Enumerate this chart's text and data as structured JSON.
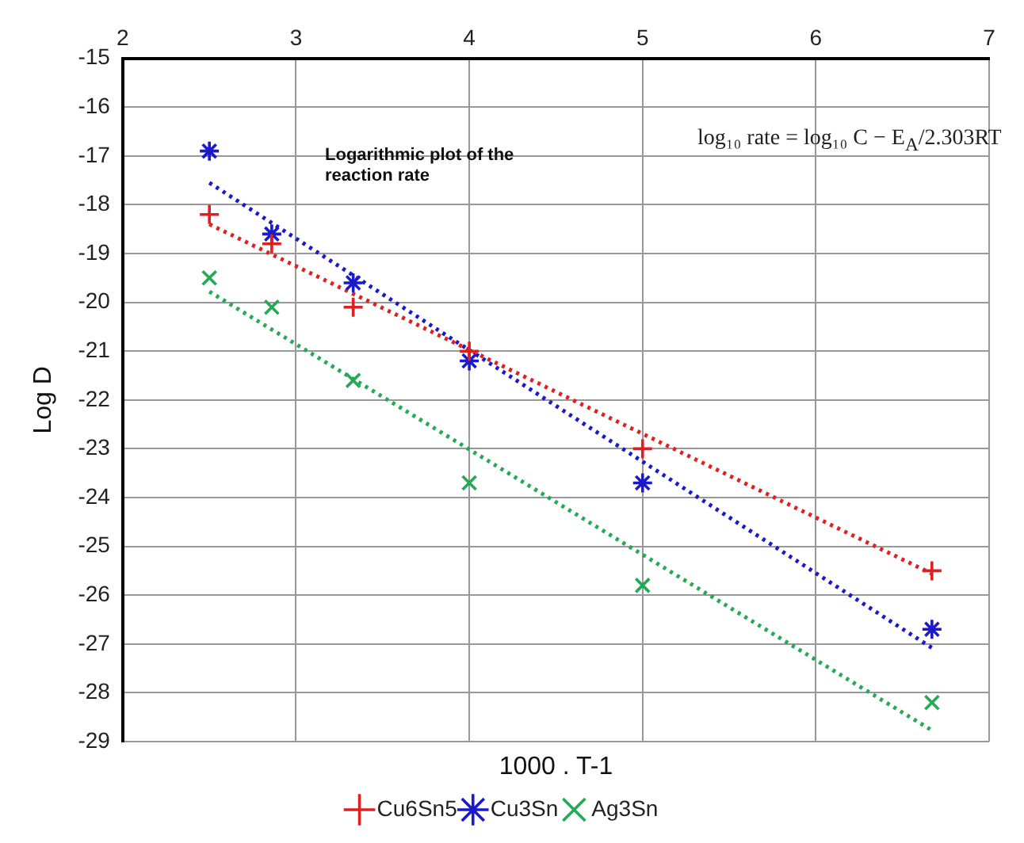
{
  "chart_data": {
    "type": "scatter",
    "xlabel": "1000 . T-1",
    "ylabel": "Log D",
    "xlim": [
      2,
      7
    ],
    "xticks": [
      2,
      3,
      4,
      5,
      6,
      7
    ],
    "ylim": [
      -29,
      -15
    ],
    "yticks": [
      -29,
      -28,
      -27,
      -26,
      -25,
      -24,
      -23,
      -22,
      -21,
      -20,
      -19,
      -18,
      -17,
      -16,
      -15
    ],
    "grid": true,
    "legend": "bottom",
    "annotations": [
      "Logarithmic plot of the reaction rate",
      "log₁₀ rate = log₁₀ C − E$_{A}$/2.303RT"
    ],
    "series": [
      {
        "name": "Cu6Sn5",
        "color": "#e02020",
        "marker": "plus",
        "x": [
          2.5,
          2.86,
          3.33,
          4,
          5,
          6.67
        ],
        "values": [
          -18.2,
          -18.8,
          -20.1,
          -21,
          -23,
          -25.5
        ]
      },
      {
        "name": "Cu3Sn",
        "color": "#1a1acc",
        "x": [
          2.5,
          2.86,
          3.33,
          4,
          5,
          6.67
        ],
        "values": [
          -16.9,
          -18.6,
          -19.6,
          -21.2,
          -23.7,
          -26.7
        ]
      },
      {
        "name": "Ag3Sn",
        "color": "#22aa55",
        "marker": "cross",
        "x": [
          2.5,
          2.86,
          3.33,
          4,
          5,
          6.67
        ],
        "values": [
          -19.5,
          -20.1,
          -21.6,
          -23.7,
          -25.8,
          -28.2
        ]
      },
      {
        "type": "line",
        "color": "#e02020",
        "marker": "none",
        "line_style": "dotted",
        "x": [
          2.5,
          6.67
        ],
        "values": [
          -18.4,
          -25.56
        ]
      },
      {
        "type": "line",
        "color": "#1a1acc",
        "marker": "none",
        "line_style": "dotted",
        "x": [
          2.5,
          6.67
        ],
        "values": [
          -17.55,
          -27.08
        ]
      },
      {
        "type": "line",
        "color": "#22aa55",
        "marker": "none",
        "line_style": "dotted",
        "x": [
          2.5,
          6.67
        ],
        "values": [
          -19.78,
          -28.77
        ]
      }
    ]
  }
}
